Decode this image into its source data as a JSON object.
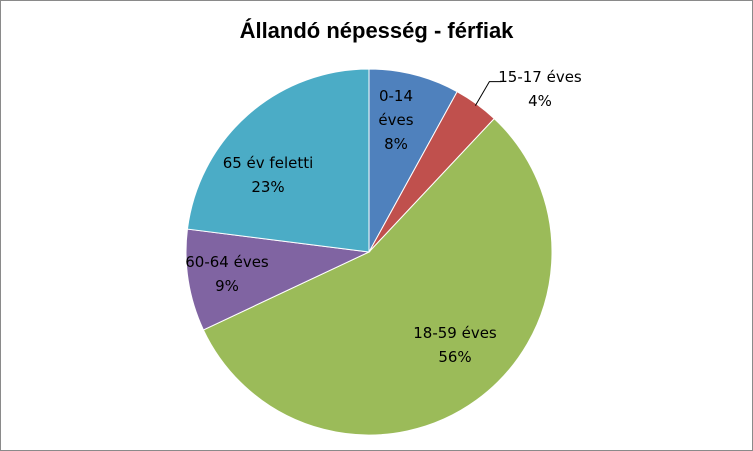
{
  "chart_data": {
    "type": "pie",
    "title": "Állandó népesség - férfiak",
    "categories": [
      "0-14 éves",
      "15-17 éves",
      "18-59 éves",
      "60-64 éves",
      "65 év feletti"
    ],
    "values": [
      8,
      4,
      56,
      9,
      23
    ],
    "percent_labels": [
      "8%",
      "4%",
      "56%",
      "9%",
      "23%"
    ],
    "colors": [
      "#4F81BD",
      "#C0504D",
      "#9BBB59",
      "#8064A2",
      "#4BACC6"
    ],
    "legend": "none",
    "start_angle_deg": 0,
    "direction": "clockwise"
  }
}
